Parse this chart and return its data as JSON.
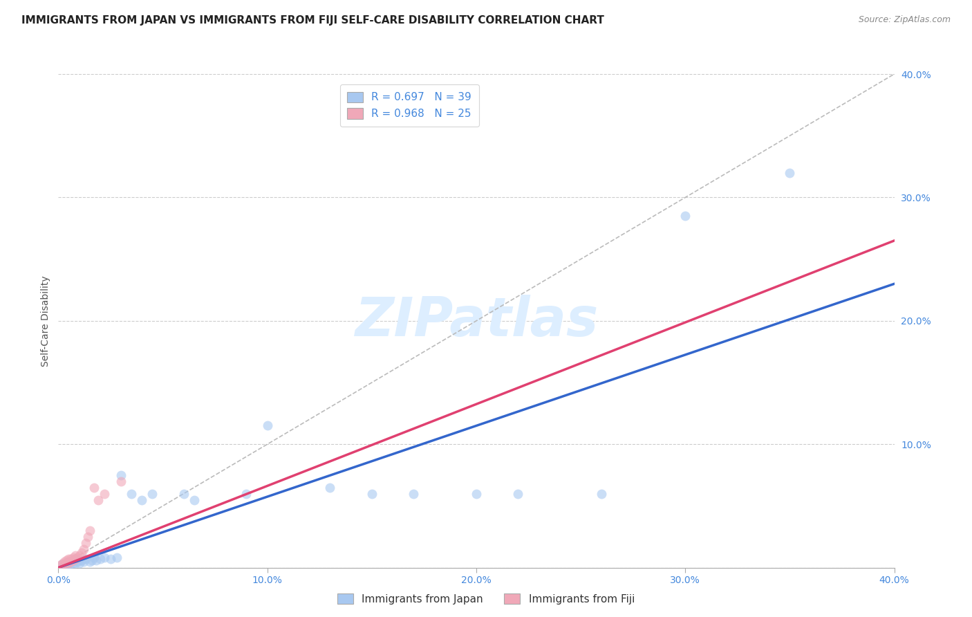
{
  "title": "IMMIGRANTS FROM JAPAN VS IMMIGRANTS FROM FIJI SELF-CARE DISABILITY CORRELATION CHART",
  "source": "Source: ZipAtlas.com",
  "ylabel": "Self-Care Disability",
  "xlim": [
    0.0,
    0.4
  ],
  "ylim": [
    0.0,
    0.4
  ],
  "x_ticks": [
    0.0,
    0.1,
    0.2,
    0.3,
    0.4
  ],
  "y_ticks": [
    0.0,
    0.1,
    0.2,
    0.3,
    0.4
  ],
  "x_tick_labels": [
    "0.0%",
    "10.0%",
    "20.0%",
    "30.0%",
    "40.0%"
  ],
  "y_tick_labels": [
    "",
    "10.0%",
    "20.0%",
    "30.0%",
    "40.0%"
  ],
  "japan_R": 0.697,
  "japan_N": 39,
  "fiji_R": 0.968,
  "fiji_N": 25,
  "japan_color": "#a8c8f0",
  "fiji_color": "#f0a8b8",
  "japan_line_color": "#3366cc",
  "fiji_line_color": "#e04070",
  "diagonal_color": "#bbbbbb",
  "watermark": "ZIPatlas",
  "watermark_color": "#ddeeff",
  "japan_scatter_x": [
    0.002,
    0.003,
    0.004,
    0.005,
    0.005,
    0.006,
    0.007,
    0.007,
    0.008,
    0.008,
    0.009,
    0.01,
    0.011,
    0.012,
    0.013,
    0.015,
    0.016,
    0.017,
    0.018,
    0.02,
    0.022,
    0.025,
    0.028,
    0.03,
    0.035,
    0.04,
    0.045,
    0.06,
    0.065,
    0.09,
    0.1,
    0.13,
    0.15,
    0.17,
    0.2,
    0.22,
    0.26,
    0.3,
    0.35
  ],
  "japan_scatter_y": [
    0.003,
    0.002,
    0.004,
    0.003,
    0.005,
    0.003,
    0.004,
    0.006,
    0.004,
    0.007,
    0.005,
    0.004,
    0.006,
    0.005,
    0.007,
    0.005,
    0.006,
    0.008,
    0.006,
    0.007,
    0.008,
    0.007,
    0.008,
    0.075,
    0.06,
    0.055,
    0.06,
    0.06,
    0.055,
    0.06,
    0.115,
    0.065,
    0.06,
    0.06,
    0.06,
    0.06,
    0.06,
    0.285,
    0.32
  ],
  "fiji_scatter_x": [
    0.001,
    0.002,
    0.003,
    0.003,
    0.004,
    0.004,
    0.005,
    0.005,
    0.006,
    0.006,
    0.007,
    0.007,
    0.008,
    0.008,
    0.009,
    0.01,
    0.011,
    0.012,
    0.013,
    0.014,
    0.015,
    0.017,
    0.019,
    0.022,
    0.03
  ],
  "fiji_scatter_y": [
    0.002,
    0.003,
    0.003,
    0.005,
    0.004,
    0.006,
    0.004,
    0.007,
    0.005,
    0.007,
    0.006,
    0.008,
    0.007,
    0.01,
    0.008,
    0.01,
    0.012,
    0.015,
    0.02,
    0.025,
    0.03,
    0.065,
    0.055,
    0.06,
    0.07
  ],
  "japan_line_x": [
    0.0,
    0.4
  ],
  "japan_line_y": [
    0.0,
    0.23
  ],
  "fiji_line_x": [
    0.0,
    0.4
  ],
  "fiji_line_y": [
    0.0,
    0.265
  ],
  "title_fontsize": 11,
  "axis_label_fontsize": 10,
  "tick_fontsize": 10,
  "legend_fontsize": 11
}
